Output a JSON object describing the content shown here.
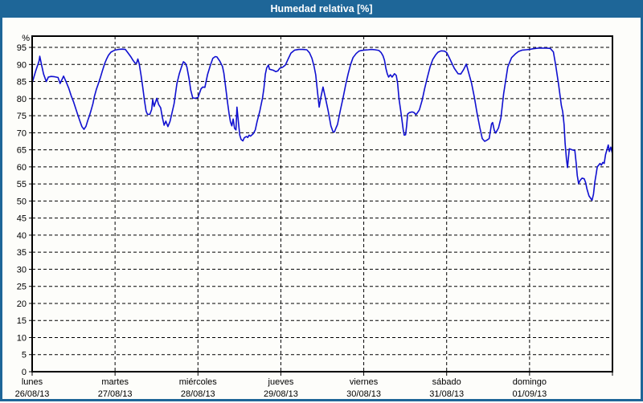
{
  "window": {
    "title": "Humedad relativa [%]",
    "colors": {
      "title_bar": "#1e6698",
      "title_text": "#ffffff",
      "frame": "#1e6698",
      "panel_bg": "#fdfdfa",
      "grid": "#000000",
      "axis": "#000000",
      "line": "#1010d0",
      "label_text": "#000000"
    }
  },
  "chart_data": {
    "type": "line",
    "title": "Humedad relativa [%]",
    "ylabel": "%",
    "xlabel": "",
    "grid": {
      "horizontal": "dashed",
      "vertical": "dashed"
    },
    "legend": "none",
    "y_axis": {
      "unit_label": "%",
      "min": 0,
      "max": 98.3,
      "tick_step": 5,
      "tick_labels": [
        "0",
        "5",
        "10",
        "15",
        "20",
        "25",
        "30",
        "35",
        "40",
        "45",
        "50",
        "55",
        "60",
        "65",
        "70",
        "75",
        "80",
        "85",
        "90",
        "95"
      ]
    },
    "x_axis": {
      "hours_total": 168,
      "days": [
        {
          "weekday": "lunes",
          "date": "26/08/13"
        },
        {
          "weekday": "martes",
          "date": "27/08/13"
        },
        {
          "weekday": "miércoles",
          "date": "28/08/13"
        },
        {
          "weekday": "jueves",
          "date": "29/08/13"
        },
        {
          "weekday": "viernes",
          "date": "30/08/13"
        },
        {
          "weekday": "sábado",
          "date": "31/08/13"
        },
        {
          "weekday": "domingo",
          "date": "01/09/13"
        }
      ]
    },
    "series": [
      {
        "name": "Humedad relativa [%]",
        "color": "#1010d0",
        "points": [
          [
            0,
            84.6
          ],
          [
            1,
            88
          ],
          [
            2,
            91
          ],
          [
            2.2,
            92.4
          ],
          [
            2.7,
            90
          ],
          [
            3.3,
            87.2
          ],
          [
            4.1,
            85
          ],
          [
            4.7,
            86.3
          ],
          [
            5.5,
            86.5
          ],
          [
            6.5,
            86.4
          ],
          [
            7.5,
            86.2
          ],
          [
            8.1,
            84.4
          ],
          [
            9.1,
            86.6
          ],
          [
            9.8,
            85
          ],
          [
            10.6,
            83
          ],
          [
            11.3,
            80.8
          ],
          [
            12,
            79
          ],
          [
            12.7,
            76.8
          ],
          [
            13.2,
            75.3
          ],
          [
            13.8,
            73.5
          ],
          [
            14.4,
            71.8
          ],
          [
            15,
            71
          ],
          [
            15.6,
            71.9
          ],
          [
            16.1,
            73.6
          ],
          [
            16.6,
            75
          ],
          [
            17,
            76.4
          ],
          [
            17.6,
            78.5
          ],
          [
            18,
            80.6
          ],
          [
            18.6,
            82.7
          ],
          [
            19.1,
            84.2
          ],
          [
            19.7,
            86
          ],
          [
            20.3,
            88
          ],
          [
            21,
            90.3
          ],
          [
            21.6,
            91.7
          ],
          [
            22.1,
            92.7
          ],
          [
            22.8,
            93.6
          ],
          [
            23.5,
            94
          ],
          [
            24,
            94.2
          ],
          [
            25,
            94.4
          ],
          [
            26,
            94.5
          ],
          [
            27,
            94.4
          ],
          [
            27.6,
            93.6
          ],
          [
            28.1,
            92.9
          ],
          [
            28.6,
            92.2
          ],
          [
            29.2,
            91.2
          ],
          [
            29.8,
            90.4
          ],
          [
            30.2,
            90.3
          ],
          [
            30.6,
            91.6
          ],
          [
            31,
            90.2
          ],
          [
            31.5,
            87
          ],
          [
            32,
            83.5
          ],
          [
            32.5,
            79.5
          ],
          [
            33,
            76.3
          ],
          [
            33.4,
            75.4
          ],
          [
            34.1,
            75.4
          ],
          [
            34.6,
            76.8
          ],
          [
            34.9,
            79.7
          ],
          [
            35.3,
            77.7
          ],
          [
            36.1,
            80.1
          ],
          [
            36.6,
            78.3
          ],
          [
            37.2,
            77.3
          ],
          [
            37.7,
            74.5
          ],
          [
            38.2,
            72.2
          ],
          [
            38.7,
            73.4
          ],
          [
            39.3,
            71.8
          ],
          [
            39.9,
            73.3
          ],
          [
            40.3,
            75
          ],
          [
            41.1,
            78.5
          ],
          [
            41.9,
            84.4
          ],
          [
            42.6,
            87.3
          ],
          [
            43.2,
            89.2
          ],
          [
            43.8,
            90.8
          ],
          [
            44.3,
            90.4
          ],
          [
            44.8,
            89.3
          ],
          [
            45.4,
            86
          ],
          [
            45.9,
            82.5
          ],
          [
            46.5,
            80.2
          ],
          [
            47.2,
            80.1
          ],
          [
            48,
            80.3
          ],
          [
            48.9,
            82.9
          ],
          [
            49.4,
            83.4
          ],
          [
            50,
            83.3
          ],
          [
            50.8,
            87.1
          ],
          [
            51.6,
            89.8
          ],
          [
            52.3,
            91.8
          ],
          [
            53,
            92.3
          ],
          [
            53.5,
            92.2
          ],
          [
            54.3,
            91
          ],
          [
            55.1,
            89.4
          ],
          [
            55.5,
            87.5
          ],
          [
            55.8,
            85.1
          ],
          [
            56.2,
            81.9
          ],
          [
            56.6,
            78.7
          ],
          [
            57,
            75.6
          ],
          [
            57.4,
            73.2
          ],
          [
            57.8,
            72
          ],
          [
            58.2,
            74
          ],
          [
            58.6,
            71.3
          ],
          [
            59,
            70.8
          ],
          [
            59.3,
            77.5
          ],
          [
            59.7,
            73.2
          ],
          [
            60.1,
            69.3
          ],
          [
            60.5,
            68
          ],
          [
            61,
            67.6
          ],
          [
            61.4,
            68.5
          ],
          [
            62,
            68.9
          ],
          [
            62.4,
            68.6
          ],
          [
            62.8,
            69.3
          ],
          [
            63.2,
            69
          ],
          [
            64,
            69.7
          ],
          [
            64.6,
            70.8
          ],
          [
            65.1,
            73.2
          ],
          [
            65.9,
            76.3
          ],
          [
            66.7,
            80.3
          ],
          [
            67.1,
            83.1
          ],
          [
            67.5,
            87.1
          ],
          [
            67.9,
            89
          ],
          [
            68.4,
            89.8
          ],
          [
            68.7,
            88.6
          ],
          [
            69.8,
            88.3
          ],
          [
            70.5,
            87.9
          ],
          [
            71.1,
            88.1
          ],
          [
            71.7,
            88.9
          ],
          [
            72.5,
            89.2
          ],
          [
            73.3,
            89.8
          ],
          [
            74.1,
            91.6
          ],
          [
            74.9,
            93.3
          ],
          [
            76,
            94.2
          ],
          [
            77.2,
            94.4
          ],
          [
            78.3,
            94.4
          ],
          [
            79.5,
            94.3
          ],
          [
            80.3,
            93.4
          ],
          [
            81,
            91.8
          ],
          [
            81.6,
            89.5
          ],
          [
            82.1,
            87
          ],
          [
            82.6,
            82
          ],
          [
            83.1,
            77.5
          ],
          [
            83.6,
            80.5
          ],
          [
            84.2,
            83.4
          ],
          [
            84.9,
            80.2
          ],
          [
            85.7,
            76.4
          ],
          [
            86.5,
            72
          ],
          [
            87.1,
            70.3
          ],
          [
            87.5,
            70.2
          ],
          [
            88,
            71.5
          ],
          [
            88.4,
            72.4
          ],
          [
            89.2,
            76.4
          ],
          [
            90,
            80.2
          ],
          [
            90.8,
            84.2
          ],
          [
            91.5,
            87.3
          ],
          [
            92.2,
            90
          ],
          [
            92.9,
            92
          ],
          [
            93.8,
            93.2
          ],
          [
            94.6,
            93.9
          ],
          [
            95.3,
            94.1
          ],
          [
            96,
            94.2
          ],
          [
            97.3,
            94.3
          ],
          [
            98.2,
            94.4
          ],
          [
            99.3,
            94.3
          ],
          [
            100.4,
            94.1
          ],
          [
            101,
            93.5
          ],
          [
            101.6,
            92.5
          ],
          [
            102,
            91.2
          ],
          [
            102.4,
            88.9
          ],
          [
            102.8,
            87.3
          ],
          [
            103.2,
            86.3
          ],
          [
            103.7,
            87
          ],
          [
            104.2,
            86.3
          ],
          [
            104.9,
            87.3
          ],
          [
            105.4,
            86.8
          ],
          [
            105.8,
            84.5
          ],
          [
            106.2,
            80
          ],
          [
            106.9,
            75
          ],
          [
            107.4,
            71
          ],
          [
            107.7,
            69.3
          ],
          [
            108.1,
            69.4
          ],
          [
            108.4,
            72
          ],
          [
            108.7,
            75.5
          ],
          [
            109.2,
            75.9
          ],
          [
            110,
            76.1
          ],
          [
            110.6,
            75.9
          ],
          [
            111.1,
            75.3
          ],
          [
            111.5,
            75.8
          ],
          [
            112.1,
            76.7
          ],
          [
            112.9,
            79.5
          ],
          [
            113.6,
            82.8
          ],
          [
            114.4,
            86.1
          ],
          [
            115.2,
            89.3
          ],
          [
            116,
            91.5
          ],
          [
            116.8,
            92.8
          ],
          [
            117.5,
            93.6
          ],
          [
            118.4,
            94
          ],
          [
            119.4,
            93.9
          ],
          [
            120,
            93.5
          ],
          [
            120.6,
            92.3
          ],
          [
            121.4,
            90.6
          ],
          [
            122.2,
            88.9
          ],
          [
            123.3,
            87.3
          ],
          [
            124.1,
            87.2
          ],
          [
            124.9,
            88.5
          ],
          [
            125.7,
            90.1
          ],
          [
            126.4,
            87.5
          ],
          [
            127.2,
            84.5
          ],
          [
            128,
            80.5
          ],
          [
            128.8,
            75.8
          ],
          [
            129.6,
            71.5
          ],
          [
            130.3,
            68.3
          ],
          [
            131,
            67.5
          ],
          [
            131.6,
            67.8
          ],
          [
            132.3,
            68.3
          ],
          [
            133,
            72.6
          ],
          [
            133.3,
            73
          ],
          [
            133.8,
            70.7
          ],
          [
            134.2,
            69.9
          ],
          [
            135,
            71.4
          ],
          [
            135.7,
            74.3
          ],
          [
            136.5,
            81.4
          ],
          [
            137.7,
            89.3
          ],
          [
            138.8,
            92
          ],
          [
            140,
            93.2
          ],
          [
            140.8,
            93.8
          ],
          [
            141.9,
            94.2
          ],
          [
            143,
            94.3
          ],
          [
            144,
            94.4
          ],
          [
            145,
            94.6
          ],
          [
            146.6,
            94.8
          ],
          [
            148.9,
            94.8
          ],
          [
            150,
            94.7
          ],
          [
            150.9,
            93.7
          ],
          [
            151.6,
            89.6
          ],
          [
            152.4,
            84.1
          ],
          [
            153.2,
            78
          ],
          [
            153.6,
            76.2
          ],
          [
            154,
            72.4
          ],
          [
            154.3,
            66.9
          ],
          [
            154.7,
            62.2
          ],
          [
            155,
            59.8
          ],
          [
            155.5,
            65.3
          ],
          [
            156.3,
            65
          ],
          [
            157.1,
            64.8
          ],
          [
            157.5,
            61
          ],
          [
            157.8,
            57.5
          ],
          [
            158.2,
            55.1
          ],
          [
            158.6,
            56
          ],
          [
            159.2,
            56.7
          ],
          [
            159.8,
            56.5
          ],
          [
            160.2,
            55.5
          ],
          [
            160.6,
            53.6
          ],
          [
            161.2,
            51.5
          ],
          [
            162.1,
            50.2
          ],
          [
            162.5,
            52
          ],
          [
            162.9,
            55.6
          ],
          [
            163.3,
            58
          ],
          [
            163.6,
            60
          ],
          [
            164.4,
            61
          ],
          [
            164.8,
            60.5
          ],
          [
            165.2,
            61.3
          ],
          [
            165.6,
            61
          ],
          [
            166,
            63.6
          ],
          [
            166.8,
            66.4
          ],
          [
            167.1,
            64.5
          ],
          [
            167.5,
            65.8
          ],
          [
            167.9,
            64.2
          ]
        ]
      }
    ]
  }
}
